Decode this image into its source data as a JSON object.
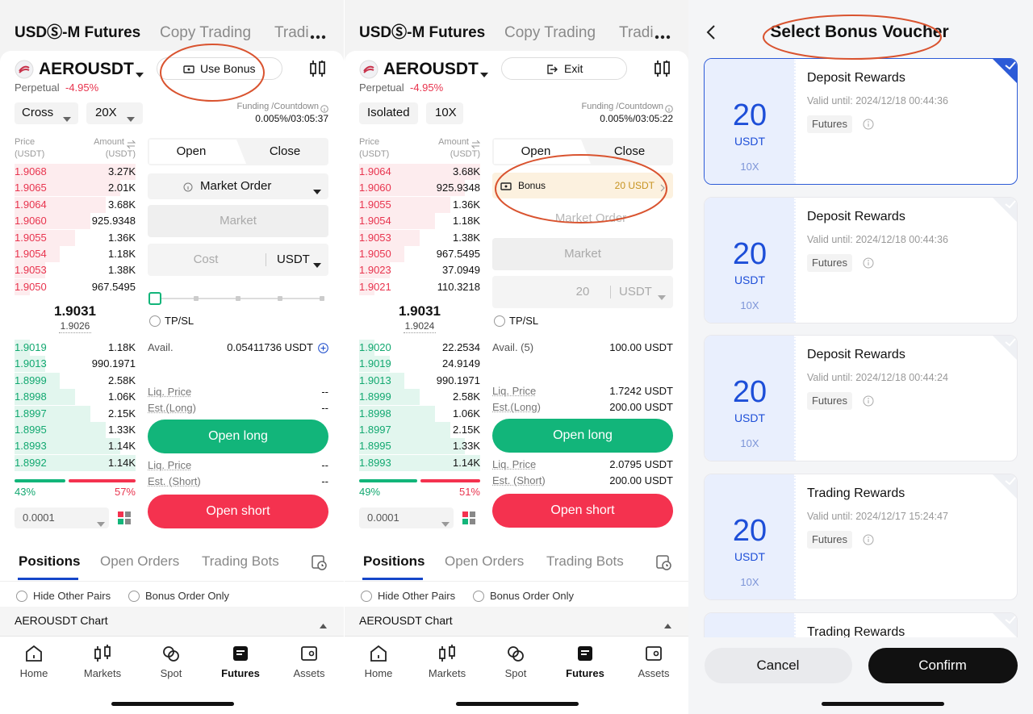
{
  "trading_panels": [
    {
      "header_tabs": [
        "USDⓈ-M Futures",
        "Copy Trading",
        "Tradi"
      ],
      "symbol": "AEROUSDT",
      "action_button": "Use Bonus",
      "contract": "Perpetual",
      "change": "-4.95%",
      "margin_mode": "Cross",
      "leverage": "20X",
      "funding_label": "Funding /Countdown",
      "funding_value": "0.005%/03:05:37",
      "book_headers": {
        "price": "Price",
        "price_unit": "(USDT)",
        "amount": "Amount",
        "amount_unit": "(USDT)"
      },
      "asks": [
        {
          "price": "1.9068",
          "amount": "3.27K"
        },
        {
          "price": "1.9065",
          "amount": "2.01K"
        },
        {
          "price": "1.9064",
          "amount": "3.68K"
        },
        {
          "price": "1.9060",
          "amount": "925.9348"
        },
        {
          "price": "1.9055",
          "amount": "1.36K"
        },
        {
          "price": "1.9054",
          "amount": "1.18K"
        },
        {
          "price": "1.9053",
          "amount": "1.38K"
        },
        {
          "price": "1.9050",
          "amount": "967.5495"
        }
      ],
      "last_price": "1.9031",
      "mark_price": "1.9026",
      "bids": [
        {
          "price": "1.9019",
          "amount": "1.18K"
        },
        {
          "price": "1.9013",
          "amount": "990.1971"
        },
        {
          "price": "1.8999",
          "amount": "2.58K"
        },
        {
          "price": "1.8998",
          "amount": "1.06K"
        },
        {
          "price": "1.8997",
          "amount": "2.15K"
        },
        {
          "price": "1.8995",
          "amount": "1.33K"
        },
        {
          "price": "1.8993",
          "amount": "1.14K"
        },
        {
          "price": "1.8992",
          "amount": "1.14K"
        }
      ],
      "buy_ratio": "43%",
      "sell_ratio": "57%",
      "precision": "0.0001",
      "order_tabs": [
        "Open",
        "Close"
      ],
      "form": {
        "order_type": "Market Order",
        "price_field": "Market",
        "amount_field": "Cost",
        "amount_unit": "USDT",
        "tpsl": "TP/SL",
        "avail_label": "Avail.",
        "avail_value": "0.05411736 USDT",
        "long_rows": [
          [
            "Liq. Price",
            "--"
          ],
          [
            "Est.(Long)",
            "--"
          ]
        ],
        "open_long": "Open long",
        "short_rows": [
          [
            "Liq. Price",
            "--"
          ],
          [
            "Est. (Short)",
            "--"
          ]
        ],
        "open_short": "Open short"
      },
      "bottom_tabs": [
        "Positions",
        "Open Orders",
        "Trading Bots"
      ],
      "filters": [
        "Hide Other Pairs",
        "Bonus Order Only"
      ],
      "chart_row": "AEROUSDT Chart",
      "nav": [
        "Home",
        "Markets",
        "Spot",
        "Futures",
        "Assets"
      ]
    },
    {
      "header_tabs": [
        "USDⓈ-M Futures",
        "Copy Trading",
        "Tradi"
      ],
      "symbol": "AEROUSDT",
      "action_button": "Exit",
      "contract": "Perpetual",
      "change": "-4.95%",
      "margin_mode": "Isolated",
      "leverage": "10X",
      "funding_label": "Funding /Countdown",
      "funding_value": "0.005%/03:05:22",
      "book_headers": {
        "price": "Price",
        "price_unit": "(USDT)",
        "amount": "Amount",
        "amount_unit": "(USDT)"
      },
      "asks": [
        {
          "price": "1.9064",
          "amount": "3.68K"
        },
        {
          "price": "1.9060",
          "amount": "925.9348"
        },
        {
          "price": "1.9055",
          "amount": "1.36K"
        },
        {
          "price": "1.9054",
          "amount": "1.18K"
        },
        {
          "price": "1.9053",
          "amount": "1.38K"
        },
        {
          "price": "1.9050",
          "amount": "967.5495"
        },
        {
          "price": "1.9023",
          "amount": "37.0949"
        },
        {
          "price": "1.9021",
          "amount": "110.3218"
        }
      ],
      "last_price": "1.9031",
      "mark_price": "1.9024",
      "bids": [
        {
          "price": "1.9020",
          "amount": "22.2534"
        },
        {
          "price": "1.9019",
          "amount": "24.9149"
        },
        {
          "price": "1.9013",
          "amount": "990.1971"
        },
        {
          "price": "1.8999",
          "amount": "2.58K"
        },
        {
          "price": "1.8998",
          "amount": "1.06K"
        },
        {
          "price": "1.8997",
          "amount": "2.15K"
        },
        {
          "price": "1.8995",
          "amount": "1.33K"
        },
        {
          "price": "1.8993",
          "amount": "1.14K"
        }
      ],
      "buy_ratio": "49%",
      "sell_ratio": "51%",
      "precision": "0.0001",
      "order_tabs": [
        "Open",
        "Close"
      ],
      "form": {
        "bonus_label": "Bonus",
        "bonus_value": "20 USDT",
        "order_type": "Market Order",
        "price_field": "Market",
        "amount_field": "20",
        "amount_unit": "USDT",
        "tpsl": "TP/SL",
        "avail_label": "Avail. (5)",
        "avail_value": "100.00 USDT",
        "long_rows": [
          [
            "Liq. Price",
            "1.7242 USDT"
          ],
          [
            "Est.(Long)",
            "200.00 USDT"
          ]
        ],
        "open_long": "Open long",
        "short_rows": [
          [
            "Liq. Price",
            "2.0795 USDT"
          ],
          [
            "Est. (Short)",
            "200.00 USDT"
          ]
        ],
        "open_short": "Open short"
      },
      "bottom_tabs": [
        "Positions",
        "Open Orders",
        "Trading Bots"
      ],
      "filters": [
        "Hide Other Pairs",
        "Bonus Order Only"
      ],
      "chart_row": "AEROUSDT Chart",
      "nav": [
        "Home",
        "Markets",
        "Spot",
        "Futures",
        "Assets"
      ]
    }
  ],
  "voucher_panel": {
    "title": "Select Bonus Voucher",
    "vouchers": [
      {
        "amount": "20",
        "unit": "USDT",
        "leverage": "10X",
        "title": "Deposit Rewards",
        "valid": "Valid until: 2024/12/18 00:44:36",
        "tag": "Futures"
      },
      {
        "amount": "20",
        "unit": "USDT",
        "leverage": "10X",
        "title": "Deposit Rewards",
        "valid": "Valid until: 2024/12/18 00:44:36",
        "tag": "Futures"
      },
      {
        "amount": "20",
        "unit": "USDT",
        "leverage": "10X",
        "title": "Deposit Rewards",
        "valid": "Valid until: 2024/12/18 00:44:24",
        "tag": "Futures"
      },
      {
        "amount": "20",
        "unit": "USDT",
        "leverage": "10X",
        "title": "Trading Rewards",
        "valid": "Valid until: 2024/12/17 15:24:47",
        "tag": "Futures"
      },
      {
        "title": "Trading Rewards"
      }
    ],
    "cancel": "Cancel",
    "confirm": "Confirm"
  }
}
